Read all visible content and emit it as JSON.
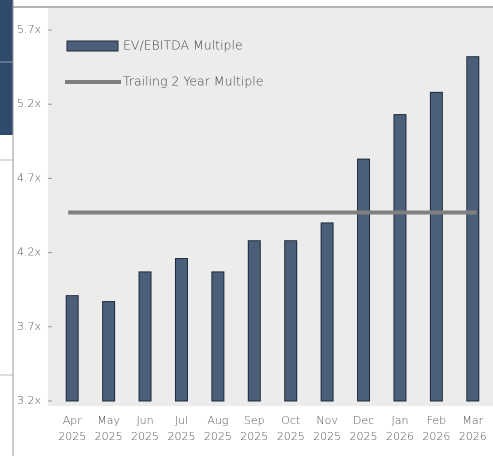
{
  "chart_data": {
    "type": "bar",
    "categories": [
      "Apr 2025",
      "May 2025",
      "Jun 2025",
      "Jul 2025",
      "Aug 2025",
      "Sep 2025",
      "Oct 2025",
      "Nov 2025",
      "Dec 2025",
      "Jan 2026",
      "Feb 2026",
      "Mar 2026"
    ],
    "series": [
      {
        "name": "EV/EBITDA Multiple",
        "type": "bar",
        "color": "#4b5f7a",
        "values": [
          3.91,
          3.87,
          4.07,
          4.16,
          4.07,
          4.28,
          4.28,
          4.4,
          4.83,
          5.13,
          5.28,
          5.52
        ]
      },
      {
        "name": "Trailing 2 Year Multiple",
        "type": "line",
        "color": "#808080",
        "values": [
          4.47,
          4.47,
          4.47,
          4.47,
          4.47,
          4.47,
          4.47,
          4.47,
          4.47,
          4.47,
          4.47,
          4.47
        ]
      }
    ],
    "ylim": [
      3.2,
      5.7
    ],
    "yticks": [
      {
        "value": 3.2,
        "label": "3.2x"
      },
      {
        "value": 3.7,
        "label": "3.7x"
      },
      {
        "value": 4.2,
        "label": "4.2x"
      },
      {
        "value": 4.7,
        "label": "4.7x"
      },
      {
        "value": 5.2,
        "label": "5.2x"
      },
      {
        "value": 5.7,
        "label": "5.7x"
      }
    ],
    "legend": "top-left"
  }
}
